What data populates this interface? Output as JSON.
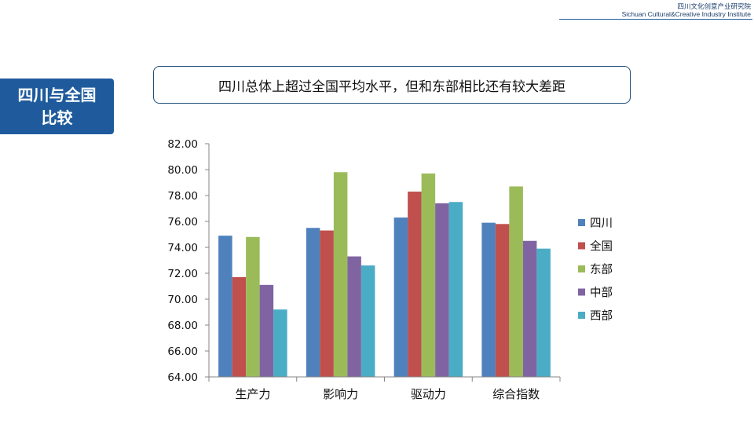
{
  "header": {
    "org_cn": "四川文化创意产业研究院",
    "org_en": "Sichuan Cultural&Creative Industry Institute"
  },
  "section_label": {
    "line1": "四川与全国",
    "line2": "比较"
  },
  "callout": "四川总体上超过全国平均水平，但和东部相比还有较大差距",
  "chart_data": {
    "type": "bar",
    "categories": [
      "生产力",
      "影响力",
      "驱动力",
      "综合指数"
    ],
    "ylim": [
      64,
      82
    ],
    "yticks": [
      "64.00",
      "66.00",
      "68.00",
      "70.00",
      "72.00",
      "74.00",
      "76.00",
      "78.00",
      "80.00",
      "82.00"
    ],
    "grid": false,
    "legend_position": "right",
    "series": [
      {
        "name": "四川",
        "color": "#4f81bd",
        "values": [
          74.9,
          75.5,
          76.3,
          75.9
        ]
      },
      {
        "name": "全国",
        "color": "#c0504d",
        "values": [
          71.7,
          75.3,
          78.3,
          75.8
        ]
      },
      {
        "name": "东部",
        "color": "#9bbb59",
        "values": [
          74.8,
          79.8,
          79.7,
          78.7
        ]
      },
      {
        "name": "中部",
        "color": "#8064a2",
        "values": [
          71.1,
          73.3,
          77.4,
          74.5
        ]
      },
      {
        "name": "西部",
        "color": "#4bacc6",
        "values": [
          69.2,
          72.6,
          77.5,
          73.9
        ]
      }
    ]
  }
}
